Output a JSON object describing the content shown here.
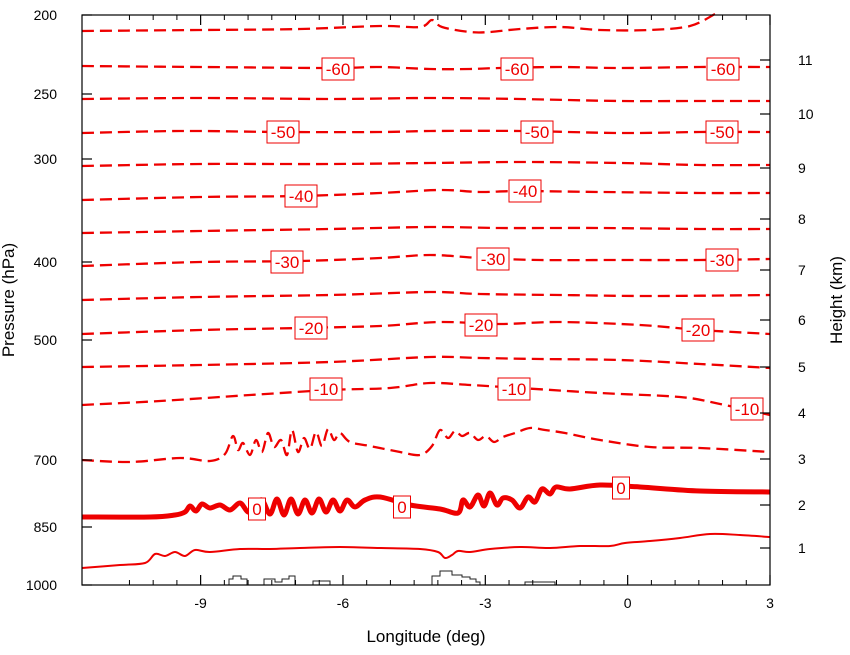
{
  "chart_data": {
    "type": "contour",
    "title": "",
    "xlabel": "Longitude (deg)",
    "ylabel": "Pressure (hPa)",
    "y2label": "Height (km)",
    "xlim": [
      -11.5,
      3
    ],
    "ylim_pressure": [
      1000,
      200
    ],
    "x_ticks": [
      -9,
      -6,
      -3,
      0,
      3
    ],
    "x_tick_labels": [
      "-9",
      "-6",
      "-3",
      "0",
      "3"
    ],
    "y_ticks": [
      200,
      250,
      300,
      400,
      500,
      700,
      850,
      1000
    ],
    "y_tick_labels": [
      "200",
      "250",
      "300",
      "400",
      "500",
      "700",
      "850",
      "1000"
    ],
    "y2_ticks": [
      1,
      2,
      3,
      4,
      5,
      6,
      7,
      8,
      9,
      10,
      11
    ],
    "y2_tick_labels": [
      "1",
      "2",
      "3",
      "4",
      "5",
      "6",
      "7",
      "8",
      "9",
      "10",
      "11"
    ],
    "line_color": "#ee0000",
    "terrain_color": "#222222",
    "contours": [
      {
        "level": -65,
        "style": "dashed",
        "labels": []
      },
      {
        "level": -60,
        "style": "dashed",
        "labels": [
          "-60",
          "-60",
          "-60"
        ]
      },
      {
        "level": -55,
        "style": "dashed",
        "labels": []
      },
      {
        "level": -50,
        "style": "dashed",
        "labels": [
          "-50",
          "-50",
          "-50"
        ]
      },
      {
        "level": -45,
        "style": "dashed",
        "labels": []
      },
      {
        "level": -40,
        "style": "dashed",
        "labels": [
          "-40",
          "-40"
        ]
      },
      {
        "level": -35,
        "style": "dashed",
        "labels": []
      },
      {
        "level": -30,
        "style": "dashed",
        "labels": [
          "-30",
          "-30",
          "-30"
        ]
      },
      {
        "level": -25,
        "style": "dashed",
        "labels": []
      },
      {
        "level": -20,
        "style": "dashed",
        "labels": [
          "-20",
          "-20",
          "-20"
        ]
      },
      {
        "level": -15,
        "style": "dashed",
        "labels": []
      },
      {
        "level": -10,
        "style": "dashed",
        "labels": [
          "-10",
          "-10",
          "-10"
        ]
      },
      {
        "level": -5,
        "style": "dashed",
        "labels": []
      },
      {
        "level": 0,
        "style": "thick",
        "labels": [
          "0",
          "0",
          "0"
        ]
      },
      {
        "level": 5,
        "style": "solid",
        "labels": []
      }
    ]
  }
}
